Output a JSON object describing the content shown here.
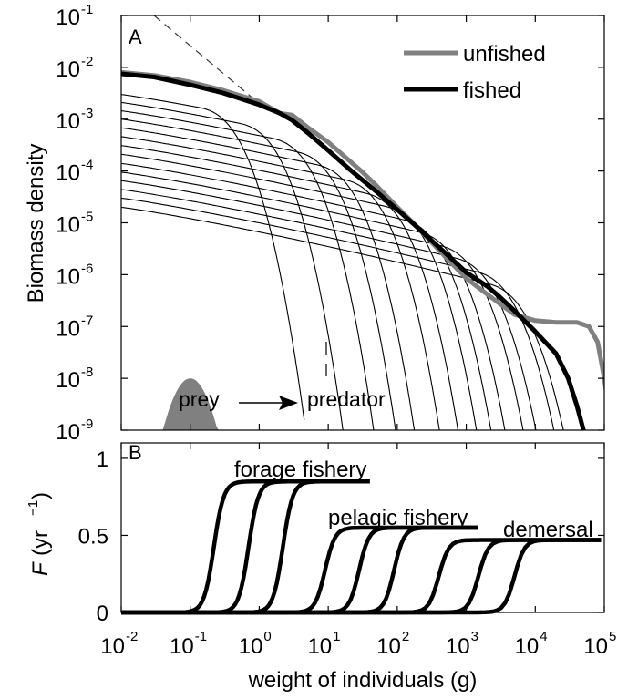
{
  "chart_data": [
    {
      "panel": "A",
      "type": "line",
      "xscale": "log",
      "yscale": "log",
      "xlim": [
        0.01,
        100000
      ],
      "ylim": [
        1e-09,
        0.1
      ],
      "ylabel": "Biomass density",
      "x_ticks": [
        0.01,
        0.1,
        1,
        10,
        100,
        1000,
        10000,
        100000
      ],
      "y_tick_labels": [
        {
          "base": "10",
          "exp": "-9",
          "value": 1e-09
        },
        {
          "base": "10",
          "exp": "-8",
          "value": 1e-08
        },
        {
          "base": "10",
          "exp": "-7",
          "value": 1e-07
        },
        {
          "base": "10",
          "exp": "-6",
          "value": 1e-06
        },
        {
          "base": "10",
          "exp": "-5",
          "value": 1e-05
        },
        {
          "base": "10",
          "exp": "-4",
          "value": 0.0001
        },
        {
          "base": "10",
          "exp": "-3",
          "value": 0.001
        },
        {
          "base": "10",
          "exp": "-2",
          "value": 0.01
        },
        {
          "base": "10",
          "exp": "-1",
          "value": 0.1
        }
      ],
      "legend_position": "top-right",
      "annotations": {
        "prey": "prey",
        "predator": "predator"
      },
      "series": [
        {
          "name": "unfished",
          "color": "#808080",
          "points": [
            [
              0.01,
              0.008
            ],
            [
              0.03,
              0.007
            ],
            [
              0.1,
              0.0052
            ],
            [
              0.3,
              0.0036
            ],
            [
              1,
              0.0022
            ],
            [
              2,
              0.0013
            ],
            [
              3,
              0.0012
            ],
            [
              5,
              0.0007
            ],
            [
              10,
              0.00036
            ],
            [
              20,
              0.00016
            ],
            [
              30,
              0.0001
            ],
            [
              50,
              5.2e-05
            ],
            [
              100,
              2e-05
            ],
            [
              200,
              8e-06
            ],
            [
              300,
              4.5e-06
            ],
            [
              500,
              2.2e-06
            ],
            [
              1000,
              8.5e-07
            ],
            [
              2000,
              4.2e-07
            ],
            [
              3000,
              2.8e-07
            ],
            [
              5000,
              1.7e-07
            ],
            [
              10000,
              1.3e-07
            ],
            [
              20000,
              1.2e-07
            ],
            [
              40000,
              1.2e-07
            ],
            [
              60000,
              1e-07
            ],
            [
              80000,
              5e-08
            ],
            [
              100000,
              1e-08
            ],
            [
              130000,
              1e-09
            ]
          ]
        },
        {
          "name": "fished",
          "color": "#000000",
          "points": [
            [
              0.01,
              0.0075
            ],
            [
              0.03,
              0.0065
            ],
            [
              0.1,
              0.0046
            ],
            [
              0.3,
              0.0032
            ],
            [
              1,
              0.0019
            ],
            [
              2,
              0.0013
            ],
            [
              3,
              0.00095
            ],
            [
              5,
              0.00055
            ],
            [
              10,
              0.00025
            ],
            [
              20,
              0.00011
            ],
            [
              30,
              7e-05
            ],
            [
              50,
              4e-05
            ],
            [
              100,
              1.8e-05
            ],
            [
              200,
              8e-06
            ],
            [
              300,
              4.8e-06
            ],
            [
              500,
              2.6e-06
            ],
            [
              1000,
              1.1e-06
            ],
            [
              2000,
              6e-07
            ],
            [
              3000,
              3.8e-07
            ],
            [
              5000,
              2e-07
            ],
            [
              10000,
              8e-08
            ],
            [
              20000,
              3e-08
            ],
            [
              30000,
              1e-08
            ],
            [
              40000,
              3e-09
            ],
            [
              50000,
              1e-09
            ]
          ]
        }
      ],
      "reference_line": {
        "style": "dashed",
        "points": [
          [
            0.03,
            0.1
          ],
          [
            1,
            0.002
          ]
        ]
      },
      "species_curves": {
        "a0": [
          0.003,
          0.0021,
          0.00145,
          0.001,
          0.00068,
          0.00046,
          0.00031,
          0.00021,
          0.00014,
          9.5e-05,
          6.5e-05,
          4.4e-05,
          3e-05,
          2e-05
        ],
        "cutoff": [
          4,
          15,
          45,
          100,
          200,
          500,
          1000,
          2000,
          3500,
          6000,
          12000,
          20000,
          40000,
          60000
        ]
      },
      "prey_spectrum": {
        "peak_x": 0.1,
        "peak_y": 1e-08,
        "color": "#808080"
      }
    },
    {
      "panel": "B",
      "type": "line",
      "xscale": "log",
      "xlim": [
        0.01,
        100000
      ],
      "ylim": [
        0,
        1.1
      ],
      "xlabel": "weight of individuals (g)",
      "ylabel_main": "F",
      "ylabel_unit": "(yr",
      "ylabel_exp": "−1",
      "ylabel_close": ")",
      "x_tick_labels": [
        {
          "base": "10",
          "exp": "-2",
          "value": 0.01
        },
        {
          "base": "10",
          "exp": "-1",
          "value": 0.1
        },
        {
          "base": "10",
          "exp": "0",
          "value": 1
        },
        {
          "base": "10",
          "exp": "1",
          "value": 10
        },
        {
          "base": "10",
          "exp": "2",
          "value": 100
        },
        {
          "base": "10",
          "exp": "3",
          "value": 1000
        },
        {
          "base": "10",
          "exp": "4",
          "value": 10000
        },
        {
          "base": "10",
          "exp": "5",
          "value": 100000
        }
      ],
      "y_tick_labels": [
        "0",
        "0.5",
        "1"
      ],
      "y_ticks": [
        0,
        0.5,
        1
      ],
      "fisheries": [
        {
          "name": "forage fishery",
          "F": 0.85,
          "end_x": 40,
          "starts": [
            0.22,
            0.7,
            2.2
          ]
        },
        {
          "name": "pelagic fishery",
          "F": 0.55,
          "end_x": 1500,
          "starts": [
            9,
            28,
            90
          ]
        },
        {
          "name": "demersal",
          "F": 0.47,
          "end_x": 90000,
          "starts": [
            400,
            1500,
            5000
          ]
        }
      ]
    }
  ],
  "panel_labels": {
    "a": "A",
    "b": "B"
  }
}
